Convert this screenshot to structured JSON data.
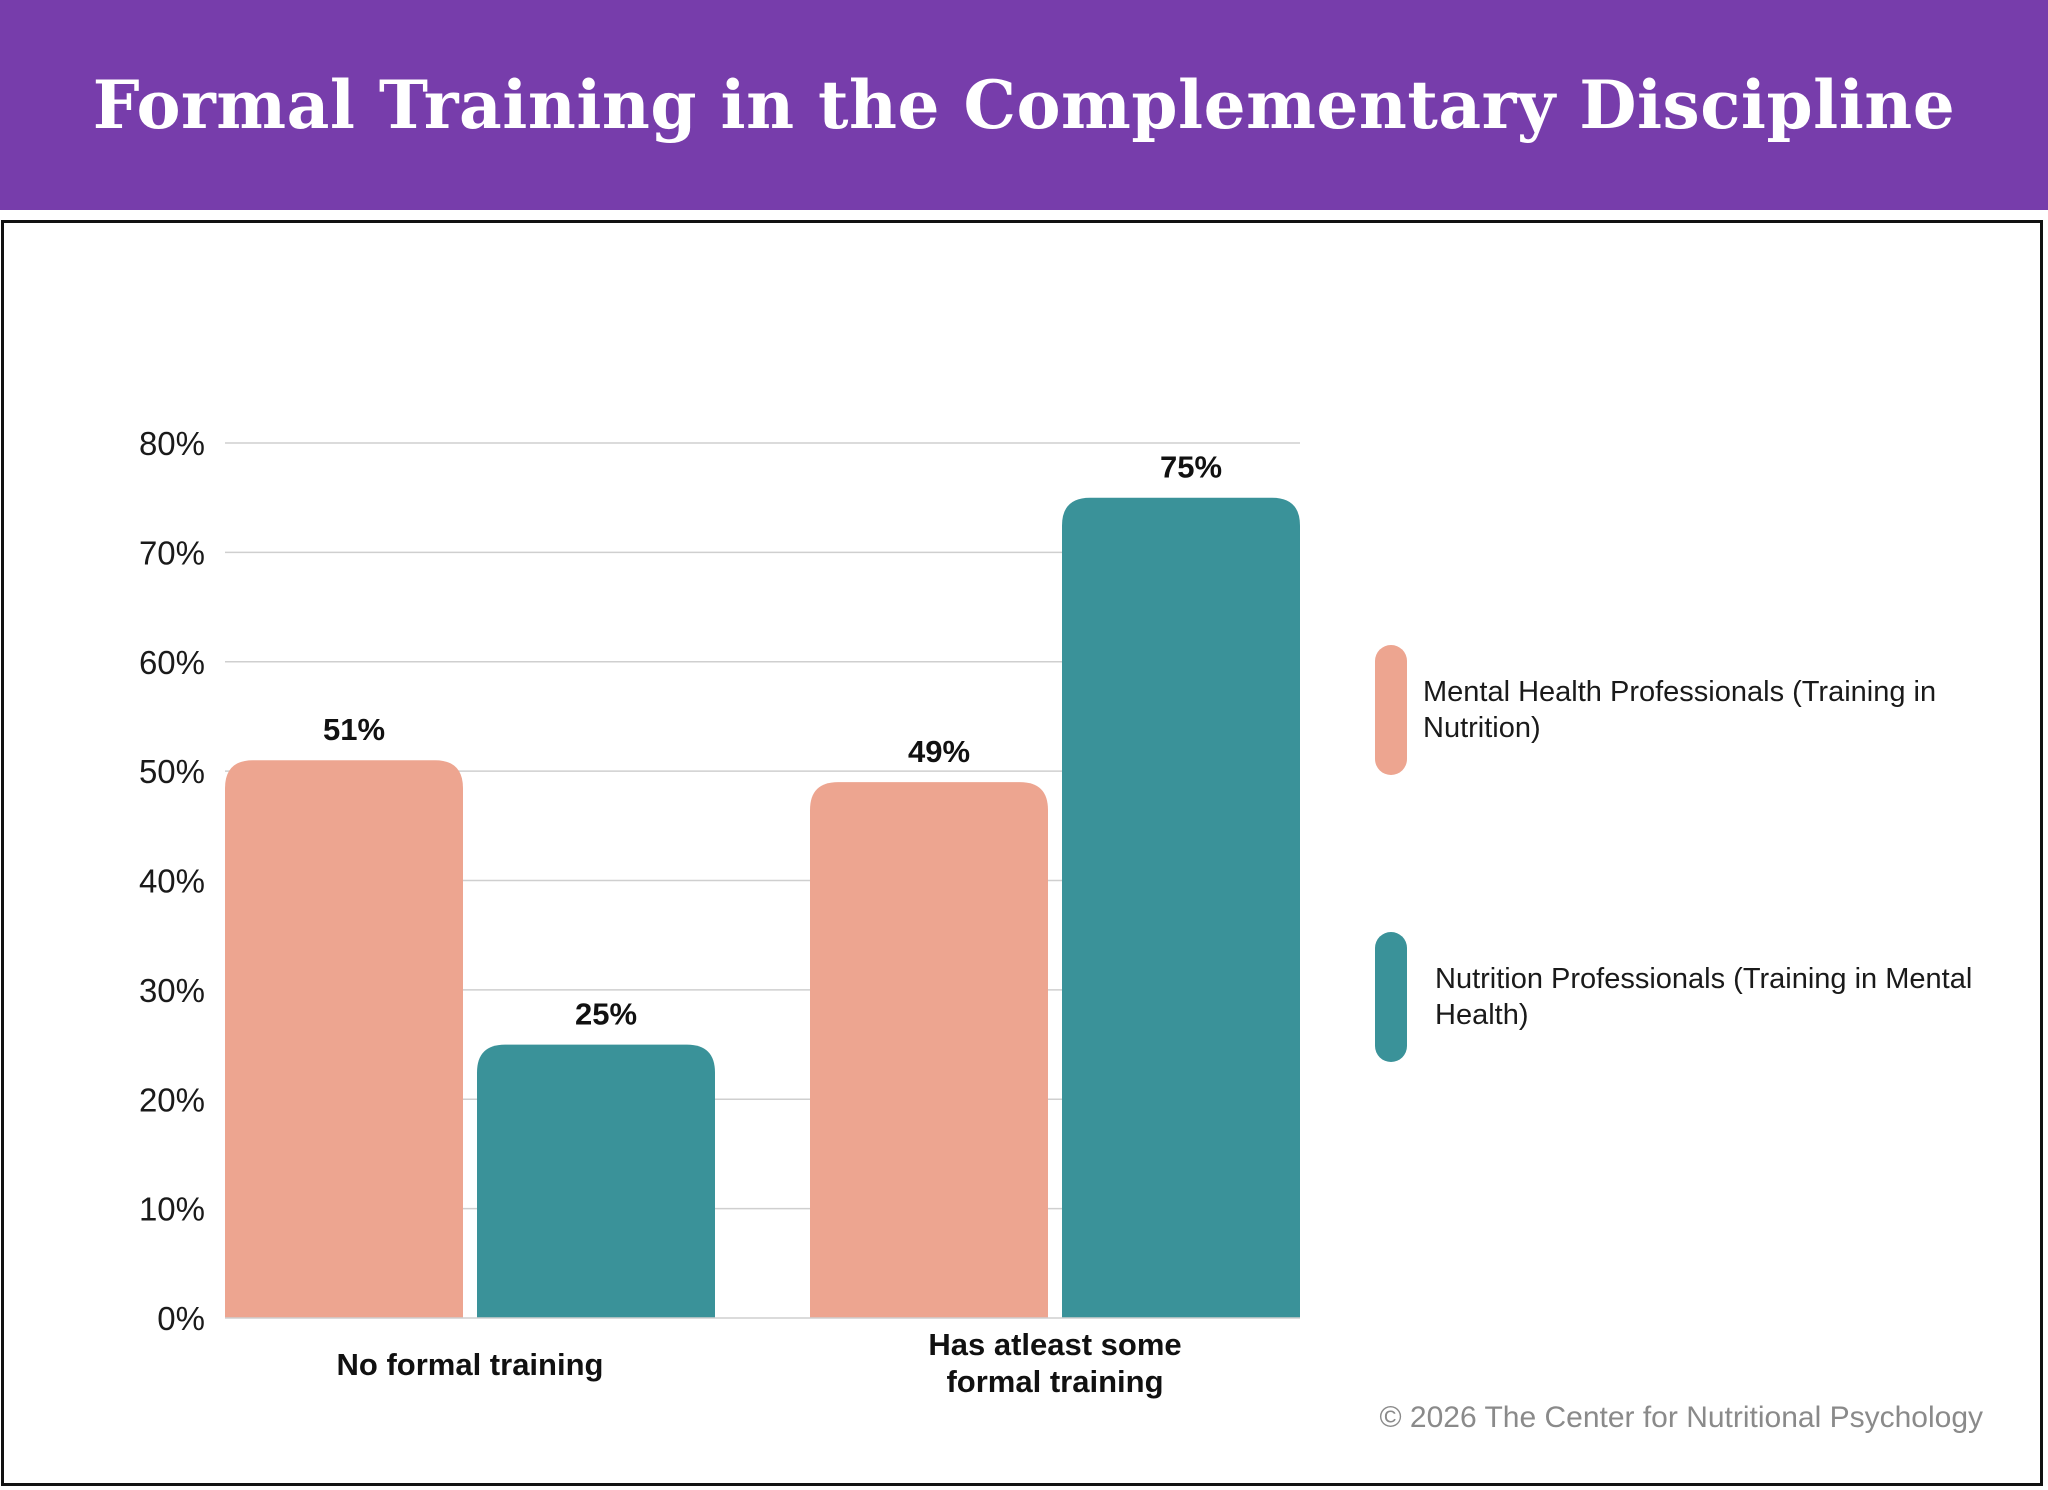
{
  "header": {
    "title": "Formal Training in the Complementary Discipline"
  },
  "chart_data": {
    "type": "bar",
    "title": "Formal Training in the Complementary Discipline",
    "categories": [
      "No formal training",
      "Has atleast some formal training"
    ],
    "series": [
      {
        "name": "Mental Health Professionals (Training in Nutrition)",
        "values": [
          51,
          49
        ],
        "color": "#eda590"
      },
      {
        "name": "Nutrition Professionals (Training in Mental Health)",
        "values": [
          25,
          75
        ],
        "color": "#3a9299"
      }
    ],
    "data_labels": [
      [
        "51%",
        "49%"
      ],
      [
        "25%",
        "75%"
      ]
    ],
    "y_ticks": [
      "0%",
      "10%",
      "20%",
      "30%",
      "40%",
      "50%",
      "60%",
      "70%",
      "80%"
    ],
    "ylim": [
      0,
      80
    ],
    "xlabel": "",
    "ylabel": "",
    "legend_position": "right",
    "grid": true
  },
  "legend": {
    "items": [
      {
        "label": "Mental Health Professionals (Training in Nutrition)",
        "color": "#eda590"
      },
      {
        "label": "Nutrition Professionals (Training in Mental Health)",
        "color": "#3a9299"
      }
    ]
  },
  "footer": {
    "copyright": "© 2026 The Center for Nutritional Psychology"
  }
}
